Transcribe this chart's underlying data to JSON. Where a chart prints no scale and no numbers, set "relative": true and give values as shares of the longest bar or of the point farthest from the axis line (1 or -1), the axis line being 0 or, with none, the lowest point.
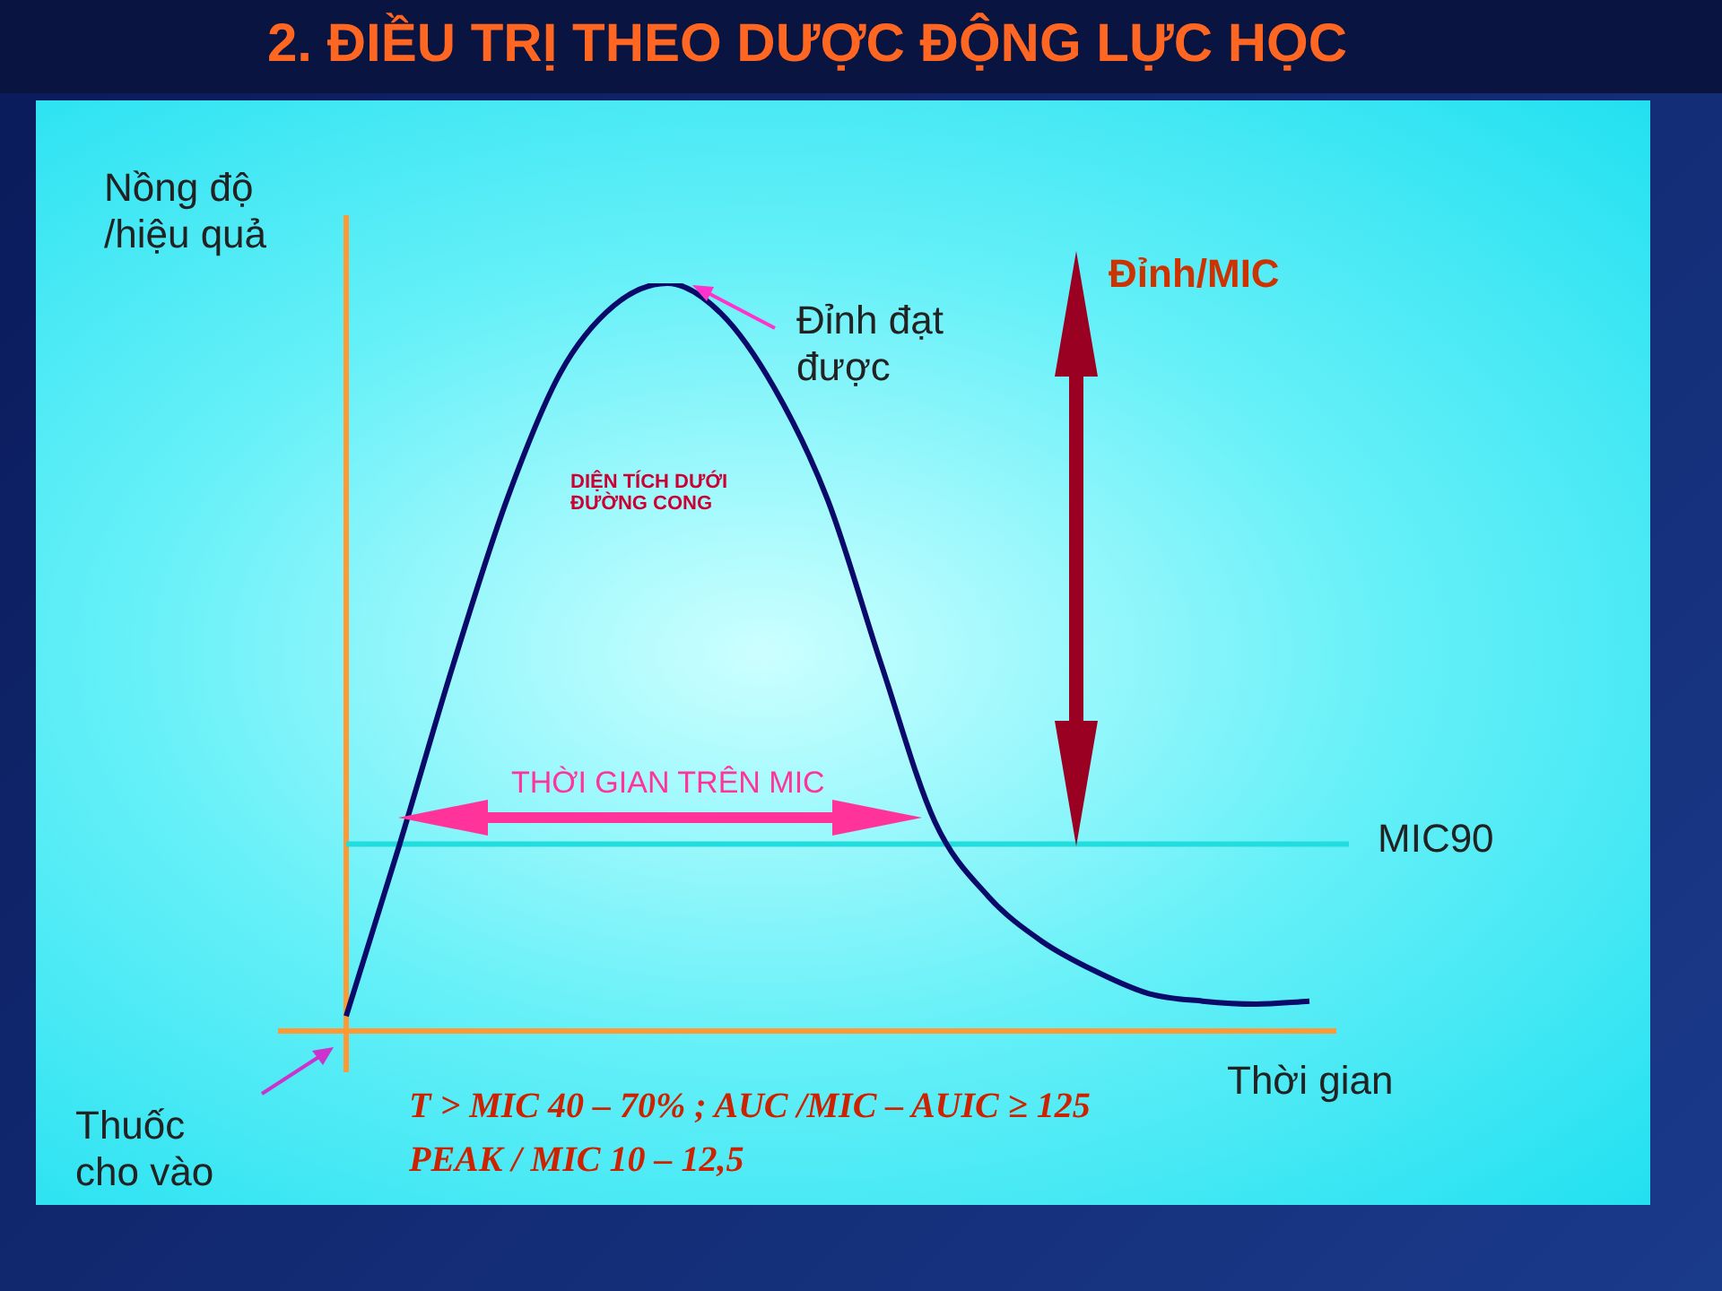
{
  "chart_data": {
    "type": "line",
    "title": "2. ĐIỀU TRỊ THEO DƯỢC ĐỘNG LỰC HỌC",
    "xlabel": "Thời gian",
    "ylabel": "Nồng độ /hiệu quả",
    "relative": true,
    "color": "#0a0a6a",
    "categories": [
      null,
      null,
      null,
      null,
      null,
      null,
      null,
      null,
      null,
      null,
      null,
      null,
      null,
      null,
      null,
      null,
      null,
      null,
      null
    ],
    "values": [
      0.02,
      0.25,
      0.49,
      0.71,
      0.88,
      0.97,
      1,
      0.96,
      0.86,
      0.71,
      0.49,
      0.28,
      0.18,
      0.12,
      0.08,
      0.05,
      0.04,
      0.036,
      0.04
    ],
    "ref_lines": [
      {
        "axis": "y",
        "value": 0.25,
        "label": "MIC90",
        "color": "#22dddd"
      }
    ],
    "annotations": [
      "Đỉnh đạt được",
      "DIỆN TÍCH DƯỚI ĐƯỜNG CONG",
      "THỜI GIAN TRÊN MIC",
      "Đỉnh/MIC",
      "Thuốc cho vào",
      "T > MIC 40 – 70% ; AUC /MIC – AUIC  ≥ 125",
      "PEAK / MIC 10 – 12,5"
    ]
  }
}
